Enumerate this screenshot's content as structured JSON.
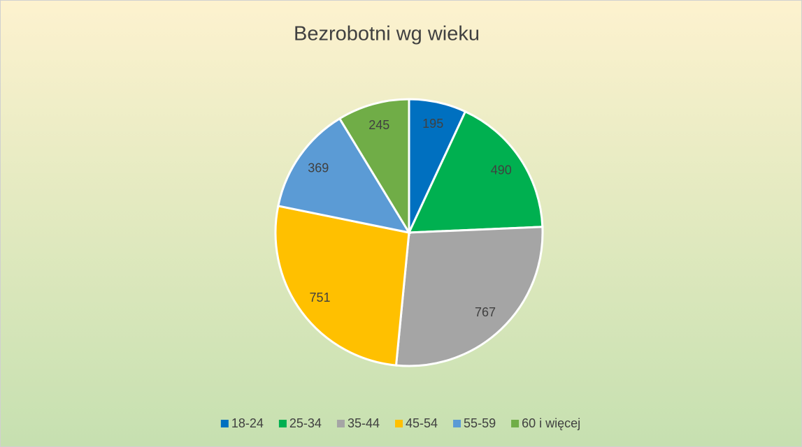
{
  "chart_data": {
    "type": "pie",
    "title": "Bezrobotni wg wieku",
    "categories": [
      "18-24",
      "25-34",
      "35-44",
      "45-54",
      "55-59",
      "60 i więcej"
    ],
    "values": [
      195,
      490,
      767,
      751,
      369,
      245
    ],
    "colors": [
      "#0070c0",
      "#00b050",
      "#a5a5a5",
      "#ffc000",
      "#5b9bd5",
      "#70ad47"
    ],
    "legend": "bottom"
  }
}
